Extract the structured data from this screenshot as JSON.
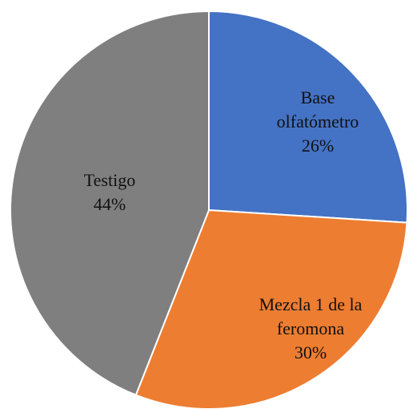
{
  "chart_data": {
    "type": "pie",
    "categories": [
      "Base olfatómetro",
      "Mezcla 1 de la feromona",
      "Testigo"
    ],
    "values": [
      26,
      30,
      44
    ],
    "value_labels": [
      "26%",
      "30%",
      "44%"
    ],
    "colors": [
      "#4472c4",
      "#ed7d31",
      "#7f7f7f"
    ]
  }
}
